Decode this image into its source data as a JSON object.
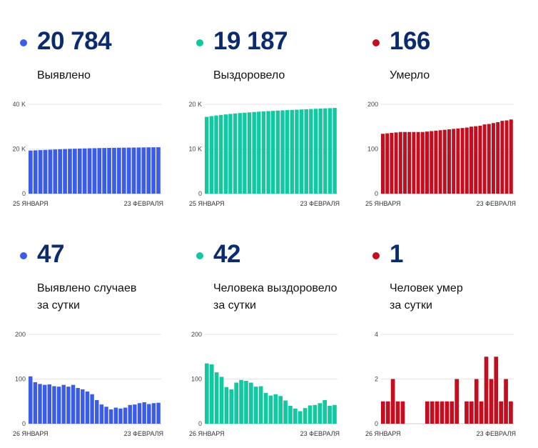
{
  "colors": {
    "blue": "#3b5ce8",
    "teal": "#11c8a0",
    "red": "#c40d1e",
    "number": "#0b2b6e"
  },
  "panels": [
    {
      "value": "20 784",
      "label": [
        "Выявлено"
      ],
      "color": "#3b5ce8"
    },
    {
      "value": "19 187",
      "label": [
        "Выздоровело"
      ],
      "color": "#11c8a0"
    },
    {
      "value": "166",
      "label": [
        "Умерло"
      ],
      "color": "#c40d1e"
    },
    {
      "value": "47",
      "label": [
        "Выявлено случаев",
        "за сутки"
      ],
      "color": "#3b5ce8"
    },
    {
      "value": "42",
      "label": [
        "Человека выздоровело",
        "за сутки"
      ],
      "color": "#11c8a0"
    },
    {
      "value": "1",
      "label": [
        "Человек умер",
        "за сутки"
      ],
      "color": "#c40d1e"
    }
  ],
  "chart_data": [
    {
      "type": "bar",
      "color": "#3b5ce8",
      "ylim": [
        0,
        40000
      ],
      "yticks": [
        {
          "v": 0,
          "label": "0"
        },
        {
          "v": 20000,
          "label": "20 K"
        },
        {
          "v": 40000,
          "label": "40 K"
        }
      ],
      "xlabels": [
        "25 ЯНВАРЯ",
        "23 ФЕВРАЛЯ"
      ],
      "values": [
        19300,
        19400,
        19500,
        19600,
        19700,
        19800,
        19880,
        19960,
        20040,
        20110,
        20180,
        20240,
        20300,
        20350,
        20400,
        20440,
        20480,
        20520,
        20550,
        20580,
        20610,
        20640,
        20670,
        20700,
        20730,
        20760,
        20784
      ]
    },
    {
      "type": "bar",
      "color": "#11c8a0",
      "ylim": [
        0,
        20000
      ],
      "yticks": [
        {
          "v": 0,
          "label": "0"
        },
        {
          "v": 10000,
          "label": "10 K"
        },
        {
          "v": 20000,
          "label": "20 K"
        }
      ],
      "xlabels": [
        "25 ЯНВАРЯ",
        "23 ФЕВРАЛЯ"
      ],
      "values": [
        17200,
        17350,
        17500,
        17620,
        17740,
        17850,
        17950,
        18040,
        18120,
        18200,
        18280,
        18350,
        18420,
        18480,
        18540,
        18600,
        18650,
        18700,
        18750,
        18800,
        18850,
        18900,
        18950,
        19000,
        19050,
        19100,
        19140,
        19187
      ]
    },
    {
      "type": "bar",
      "color": "#c40d1e",
      "ylim": [
        0,
        200
      ],
      "yticks": [
        {
          "v": 0,
          "label": "0"
        },
        {
          "v": 100,
          "label": "100"
        },
        {
          "v": 200,
          "label": "200"
        }
      ],
      "xlabels": [
        "25 ЯНВАРЯ",
        "23 ФЕВРАЛЯ"
      ],
      "values": [
        134,
        135,
        136,
        137,
        138,
        138,
        138,
        138,
        138,
        138,
        139,
        140,
        141,
        142,
        143,
        144,
        145,
        146,
        147,
        148,
        150,
        151,
        152,
        155,
        156,
        158,
        160,
        163,
        164,
        166
      ]
    },
    {
      "type": "bar",
      "color": "#3b5ce8",
      "ylim": [
        0,
        200
      ],
      "yticks": [
        {
          "v": 0,
          "label": "0"
        },
        {
          "v": 100,
          "label": "100"
        },
        {
          "v": 200,
          "label": "200"
        }
      ],
      "xlabels": [
        "26 ЯНВАРЯ",
        "23 ФЕВРАЛЯ"
      ],
      "values": [
        106,
        93,
        89,
        87,
        88,
        84,
        83,
        87,
        83,
        87,
        80,
        77,
        72,
        66,
        53,
        43,
        38,
        32,
        36,
        34,
        36,
        42,
        43,
        46,
        48,
        44,
        46,
        47
      ]
    },
    {
      "type": "bar",
      "color": "#11c8a0",
      "ylim": [
        0,
        200
      ],
      "yticks": [
        {
          "v": 0,
          "label": "0"
        },
        {
          "v": 100,
          "label": "100"
        },
        {
          "v": 200,
          "label": "200"
        }
      ],
      "xlabels": [
        "26 ЯНВАРЯ",
        "23 ФЕВРАЛЯ"
      ],
      "values": [
        135,
        133,
        115,
        105,
        82,
        77,
        92,
        98,
        96,
        92,
        83,
        84,
        69,
        63,
        66,
        62,
        52,
        40,
        34,
        28,
        35,
        41,
        42,
        46,
        53,
        40,
        42
      ]
    },
    {
      "type": "bar",
      "color": "#c40d1e",
      "ylim": [
        0,
        4
      ],
      "yticks": [
        {
          "v": 0,
          "label": "0"
        },
        {
          "v": 2,
          "label": "2"
        },
        {
          "v": 4,
          "label": "4"
        }
      ],
      "xlabels": [
        "26 ЯНВАРЯ",
        "23 ФЕВРАЛЯ"
      ],
      "values": [
        1,
        1,
        2,
        1,
        1,
        0,
        0,
        0,
        0,
        1,
        1,
        1,
        1,
        1,
        1,
        2,
        0,
        1,
        1,
        2,
        1,
        3,
        2,
        3,
        1,
        2,
        1
      ]
    }
  ]
}
